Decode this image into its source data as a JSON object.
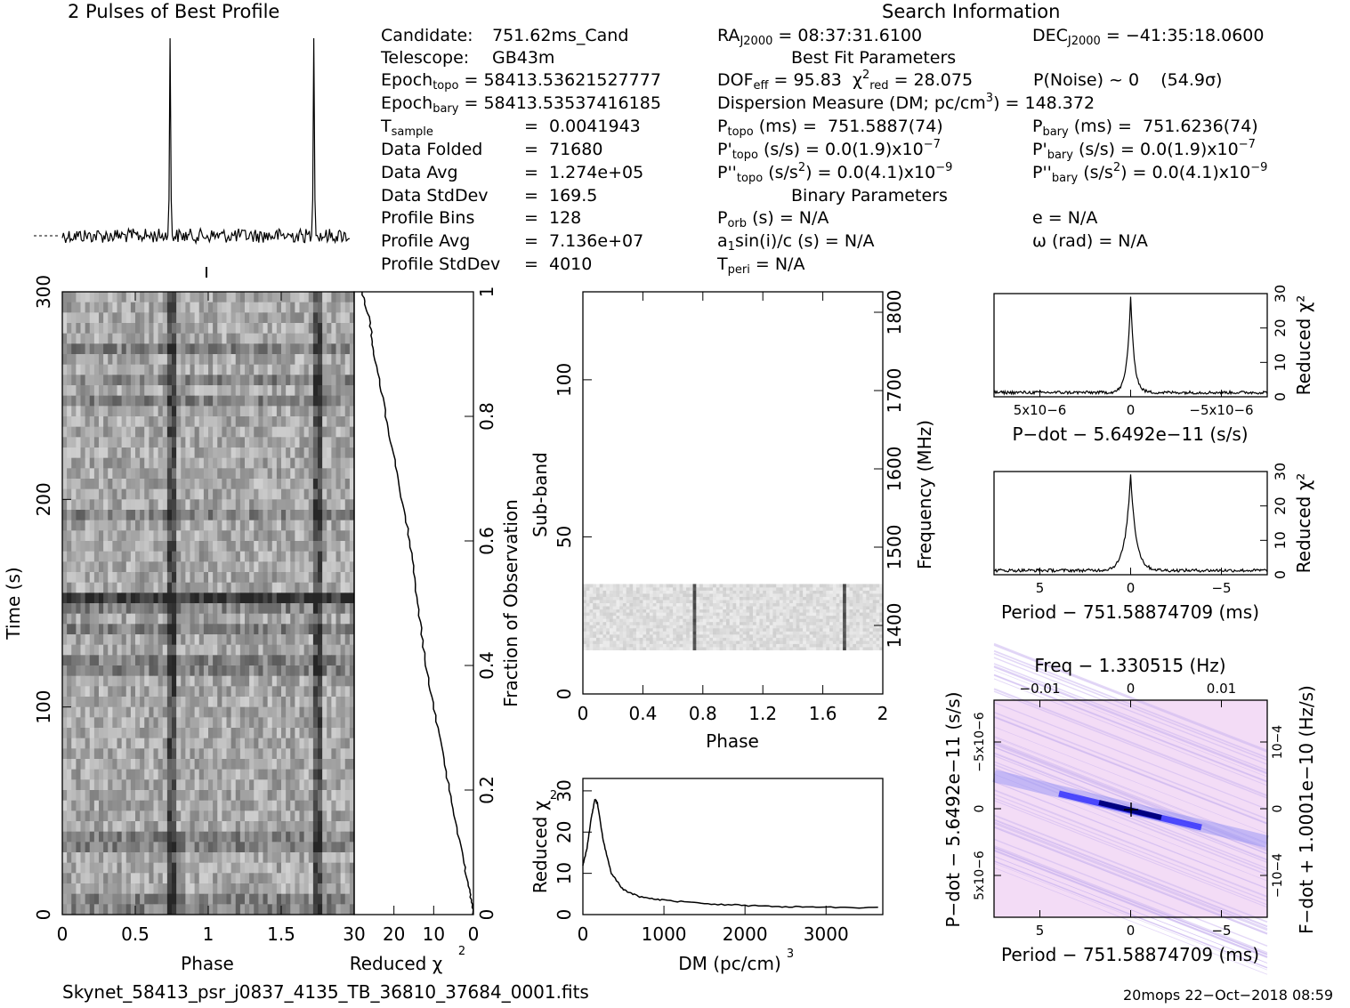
{
  "header": {
    "profile_title": "2 Pulses of Best Profile",
    "search_title": "Search Information",
    "best_fit_title": "Best Fit Parameters",
    "binary_title": "Binary Parameters"
  },
  "info": {
    "candidate_label": "Candidate:",
    "candidate": "751.62ms_Cand",
    "telescope_label": "Telescope:",
    "telescope": "GB43m",
    "epoch_topo": "58413.53621527777",
    "epoch_bary": "58413.53537416185",
    "t_sample": "0.0041943",
    "data_folded": "71680",
    "data_avg": "1.274e+05",
    "data_stddev": "169.5",
    "profile_bins": "128",
    "profile_avg": "7.136e+07",
    "profile_stddev": "4010",
    "ra": "08:37:31.6100",
    "dec": "−41:35:18.0600",
    "dof_eff": "95.83",
    "chi2_red": "28.075",
    "p_noise": "P(Noise) ~ 0",
    "sigma": "(54.9σ)",
    "dm": "148.372",
    "p_topo": "751.5887(74)",
    "p_bary": "751.6236(74)",
    "pd_topo": "0.0(1.9)x10",
    "pd_bary": "0.0(1.9)x10",
    "pd_exp": "−7",
    "pdd_topo": "0.0(4.1)x10",
    "pdd_bary": "0.0(4.1)x10",
    "pdd_exp": "−9",
    "p_orb": "N/A",
    "e": "N/A",
    "a1sini": "N/A",
    "omega": "N/A",
    "t_peri": "N/A"
  },
  "footer": {
    "filename": "Skynet_58413_psr_j0837_4135_TB_36810_37684_0001.fits",
    "stamp": "20mops 22−Oct−2018 08:59"
  },
  "chart_data": [
    {
      "type": "line",
      "name": "profile",
      "title": "2 Pulses of Best Profile",
      "x": "phase 0–2",
      "peaks": [
        0.75,
        1.75
      ],
      "noise_level": "flat baseline"
    },
    {
      "type": "heatmap",
      "name": "time-phase",
      "xlabel": "Phase",
      "ylabel": "Time (s)",
      "xticks": [
        "0",
        "0.5",
        "1",
        "1.5"
      ],
      "yticks": [
        "0",
        "100",
        "200",
        "300"
      ],
      "xlim": [
        0,
        2
      ],
      "ylim": [
        0,
        300
      ],
      "pulse_phases": [
        0.75,
        1.75
      ]
    },
    {
      "type": "line",
      "name": "cumulative-chi2",
      "xlabel": "Reduced χ2",
      "ylabel": "Fraction of Observation",
      "xticks": [
        "30",
        "20",
        "10",
        "0"
      ],
      "yticks": [
        "0",
        "0.2",
        "0.4",
        "0.6",
        "0.8",
        "1"
      ],
      "xlim": [
        30,
        0
      ],
      "ylim": [
        0,
        1
      ],
      "points": [
        [
          0,
          0
        ],
        [
          1,
          0.04
        ],
        [
          3,
          0.1
        ],
        [
          6,
          0.2
        ],
        [
          9,
          0.3
        ],
        [
          12,
          0.4
        ],
        [
          14,
          0.5
        ],
        [
          16,
          0.6
        ],
        [
          19,
          0.7
        ],
        [
          22,
          0.8
        ],
        [
          25,
          0.9
        ],
        [
          26,
          0.95
        ],
        [
          28,
          1.0
        ]
      ]
    },
    {
      "type": "heatmap",
      "name": "subband-phase",
      "xlabel": "Phase",
      "ylabel": "Sub-band",
      "y2label": "Frequency (MHz)",
      "xticks": [
        "0",
        "0.4",
        "0.8",
        "1.2",
        "1.6",
        "2"
      ],
      "yticks": [
        "0",
        "50",
        "100"
      ],
      "y2ticks": [
        "1400",
        "1500",
        "1600",
        "1700",
        "1800"
      ],
      "xlim": [
        0,
        2
      ],
      "ylim": [
        0,
        128
      ],
      "populated_subbands": [
        14,
        35
      ],
      "pulse_phases": [
        0.75,
        1.75
      ]
    },
    {
      "type": "line",
      "name": "dm-chi2",
      "xlabel": "DM (pc/cm3)",
      "ylabel": "Reduced χ2",
      "xticks": [
        "0",
        "1000",
        "2000",
        "3000"
      ],
      "yticks": [
        "0",
        "10",
        "20",
        "30"
      ],
      "xlim": [
        0,
        3700
      ],
      "ylim": [
        0,
        33
      ],
      "points": [
        [
          0,
          12
        ],
        [
          50,
          16
        ],
        [
          100,
          23
        ],
        [
          148,
          28
        ],
        [
          180,
          27
        ],
        [
          250,
          18
        ],
        [
          350,
          10
        ],
        [
          500,
          6
        ],
        [
          700,
          4.3
        ],
        [
          1000,
          3.5
        ],
        [
          1500,
          2.6
        ],
        [
          2000,
          2.2
        ],
        [
          2500,
          1.9
        ],
        [
          3000,
          1.8
        ],
        [
          3700,
          1.7
        ]
      ]
    },
    {
      "type": "line",
      "name": "pdot-chi2",
      "xlabel": "P−dot − 5.6492e−11 (s/s)",
      "ylabel": "Reduced χ2",
      "xticks": [
        "5x10−6",
        "0",
        "−5x10−6"
      ],
      "yticks": [
        "0",
        "10",
        "20",
        "30"
      ],
      "ylim": [
        0,
        30
      ],
      "peak": 28
    },
    {
      "type": "line",
      "name": "period-chi2",
      "xlabel": "Period − 751.58874709 (ms)",
      "ylabel": "Reduced χ2",
      "xticks": [
        "5",
        "0",
        "−5"
      ],
      "yticks": [
        "0",
        "10",
        "20",
        "30"
      ],
      "ylim": [
        0,
        30
      ],
      "peak": 28
    },
    {
      "type": "heatmap",
      "name": "p-pdot",
      "xlabel": "Period − 751.58874709 (ms)",
      "x2label": "Freq − 1.330515 (Hz)",
      "ylabel": "P−dot − 5.6492e−11 (s/s)",
      "y2label": "F−dot + 1.0001e−10 (Hz/s)",
      "xticks": [
        "5",
        "0",
        "−5"
      ],
      "x2ticks": [
        "−0.01",
        "0",
        "0.01"
      ],
      "yticks": [
        "5x10−6",
        "0",
        "−5x10−6"
      ],
      "y2ticks": [
        "−10−4",
        "0",
        "10−4"
      ],
      "peak_marker": "+"
    }
  ],
  "labels": {
    "phase": "Phase",
    "time": "Time (s)",
    "reduced": "Reduced",
    "chi": "χ",
    "fraction": "Fraction of Observation",
    "subband": "Sub-band",
    "frequency": "Frequency (MHz)",
    "dm": "DM (pc/cm",
    "pdot_axis": "P−dot − 5.6492e−11 (s/s)",
    "period_axis": "Period − 751.58874709 (ms)",
    "freq_axis": "Freq − 1.330515 (Hz)",
    "pdot_y": "P−dot − 5.6492e−11 (s/s)",
    "fdot_y": "F−dot + 1.0001e−10 (Hz/s)"
  },
  "colors": {
    "ink": "#000000",
    "heat_blue": "#1a1aff",
    "heat_bg": "#f3dcf6"
  }
}
